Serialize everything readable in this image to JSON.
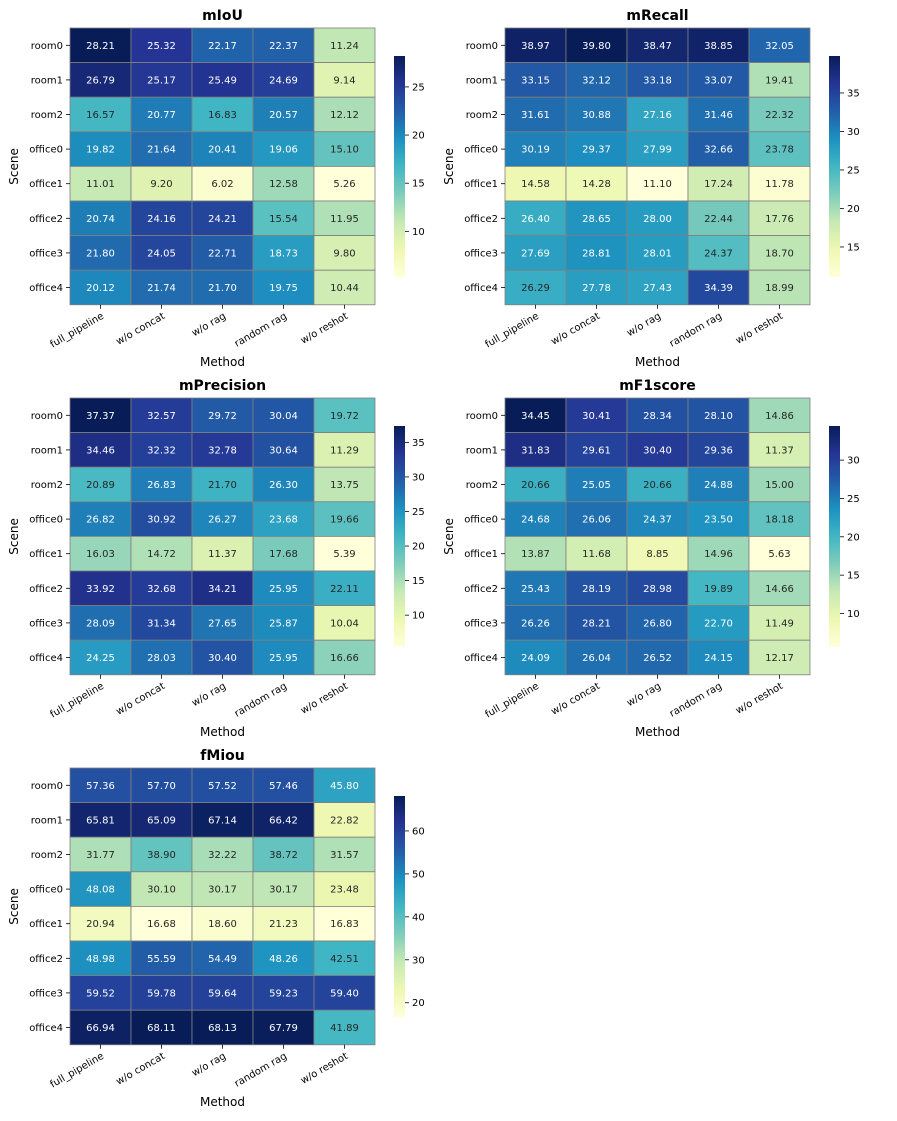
{
  "chart_data": [
    {
      "type": "heatmap",
      "title": "mIoU",
      "xlabel": "Method",
      "ylabel": "Scene",
      "x_categories": [
        "full_pipeline",
        "w/o concat",
        "w/o rag",
        "random rag",
        "w/o reshot"
      ],
      "y_categories": [
        "room0",
        "room1",
        "room2",
        "office0",
        "office1",
        "office2",
        "office3",
        "office4"
      ],
      "values": [
        [
          "28.21",
          "25.32",
          "22.17",
          "22.37",
          "11.24"
        ],
        [
          "26.79",
          "25.17",
          "25.49",
          "24.69",
          "9.14"
        ],
        [
          "16.57",
          "20.77",
          "16.83",
          "20.57",
          "12.12"
        ],
        [
          "19.82",
          "21.64",
          "20.41",
          "19.06",
          "15.10"
        ],
        [
          "11.01",
          "9.20",
          "6.02",
          "12.58",
          "5.26"
        ],
        [
          "20.74",
          "24.16",
          "24.21",
          "15.54",
          "11.95"
        ],
        [
          "21.80",
          "24.05",
          "22.71",
          "18.73",
          "9.80"
        ],
        [
          "20.12",
          "21.74",
          "21.70",
          "19.75",
          "10.44"
        ]
      ],
      "colorbar": {
        "min": 5.26,
        "max": 28.21,
        "ticks": [
          "10",
          "15",
          "20",
          "25"
        ]
      },
      "colormap": "YlGnBu"
    },
    {
      "type": "heatmap",
      "title": "mRecall",
      "xlabel": "Method",
      "ylabel": "Scene",
      "x_categories": [
        "full_pipeline",
        "w/o concat",
        "w/o rag",
        "random rag",
        "w/o reshot"
      ],
      "y_categories": [
        "room0",
        "room1",
        "room2",
        "office0",
        "office1",
        "office2",
        "office3",
        "office4"
      ],
      "values": [
        [
          "38.97",
          "39.80",
          "38.47",
          "38.85",
          "32.05"
        ],
        [
          "33.15",
          "32.12",
          "33.18",
          "33.07",
          "19.41"
        ],
        [
          "31.61",
          "30.88",
          "27.16",
          "31.46",
          "22.32"
        ],
        [
          "30.19",
          "29.37",
          "27.99",
          "32.66",
          "23.78"
        ],
        [
          "14.58",
          "14.28",
          "11.10",
          "17.24",
          "11.78"
        ],
        [
          "26.40",
          "28.65",
          "28.00",
          "22.44",
          "17.76"
        ],
        [
          "27.69",
          "28.81",
          "28.01",
          "24.37",
          "18.70"
        ],
        [
          "26.29",
          "27.78",
          "27.43",
          "34.39",
          "18.99"
        ]
      ],
      "colorbar": {
        "min": 11.1,
        "max": 39.8,
        "ticks": [
          "15",
          "20",
          "25",
          "30",
          "35"
        ]
      },
      "colormap": "YlGnBu"
    },
    {
      "type": "heatmap",
      "title": "mPrecision",
      "xlabel": "Method",
      "ylabel": "Scene",
      "x_categories": [
        "full_pipeline",
        "w/o concat",
        "w/o rag",
        "random rag",
        "w/o reshot"
      ],
      "y_categories": [
        "room0",
        "room1",
        "room2",
        "office0",
        "office1",
        "office2",
        "office3",
        "office4"
      ],
      "values": [
        [
          "37.37",
          "32.57",
          "29.72",
          "30.04",
          "19.72"
        ],
        [
          "34.46",
          "32.32",
          "32.78",
          "30.64",
          "11.29"
        ],
        [
          "20.89",
          "26.83",
          "21.70",
          "26.30",
          "13.75"
        ],
        [
          "26.82",
          "30.92",
          "26.27",
          "23.68",
          "19.66"
        ],
        [
          "16.03",
          "14.72",
          "11.37",
          "17.68",
          "5.39"
        ],
        [
          "33.92",
          "32.68",
          "34.21",
          "25.95",
          "22.11"
        ],
        [
          "28.09",
          "31.34",
          "27.65",
          "25.87",
          "10.04"
        ],
        [
          "24.25",
          "28.03",
          "30.40",
          "25.95",
          "16.66"
        ]
      ],
      "colorbar": {
        "min": 5.39,
        "max": 37.37,
        "ticks": [
          "10",
          "15",
          "20",
          "25",
          "30",
          "35"
        ]
      },
      "colormap": "YlGnBu"
    },
    {
      "type": "heatmap",
      "title": "mF1score",
      "xlabel": "Method",
      "ylabel": "Scene",
      "x_categories": [
        "full_pipeline",
        "w/o concat",
        "w/o rag",
        "random rag",
        "w/o reshot"
      ],
      "y_categories": [
        "room0",
        "room1",
        "room2",
        "office0",
        "office1",
        "office2",
        "office3",
        "office4"
      ],
      "values": [
        [
          "34.45",
          "30.41",
          "28.34",
          "28.10",
          "14.86"
        ],
        [
          "31.83",
          "29.61",
          "30.40",
          "29.36",
          "11.37"
        ],
        [
          "20.66",
          "25.05",
          "20.66",
          "24.88",
          "15.00"
        ],
        [
          "24.68",
          "26.06",
          "24.37",
          "23.50",
          "18.18"
        ],
        [
          "13.87",
          "11.68",
          "8.85",
          "14.96",
          "5.63"
        ],
        [
          "25.43",
          "28.19",
          "28.98",
          "19.89",
          "14.66"
        ],
        [
          "26.26",
          "28.21",
          "26.80",
          "22.70",
          "11.49"
        ],
        [
          "24.09",
          "26.04",
          "26.52",
          "24.15",
          "12.17"
        ]
      ],
      "colorbar": {
        "min": 5.63,
        "max": 34.45,
        "ticks": [
          "10",
          "15",
          "20",
          "25",
          "30"
        ]
      },
      "colormap": "YlGnBu"
    },
    {
      "type": "heatmap",
      "title": "fMiou",
      "xlabel": "Method",
      "ylabel": "Scene",
      "x_categories": [
        "full_pipeline",
        "w/o concat",
        "w/o rag",
        "random rag",
        "w/o reshot"
      ],
      "y_categories": [
        "room0",
        "room1",
        "room2",
        "office0",
        "office1",
        "office2",
        "office3",
        "office4"
      ],
      "values": [
        [
          "57.36",
          "57.70",
          "57.52",
          "57.46",
          "45.80"
        ],
        [
          "65.81",
          "65.09",
          "67.14",
          "66.42",
          "22.82"
        ],
        [
          "31.77",
          "38.90",
          "32.22",
          "38.72",
          "31.57"
        ],
        [
          "48.08",
          "30.10",
          "30.17",
          "30.17",
          "23.48"
        ],
        [
          "20.94",
          "16.68",
          "18.60",
          "21.23",
          "16.83"
        ],
        [
          "48.98",
          "55.59",
          "54.49",
          "48.26",
          "42.51"
        ],
        [
          "59.52",
          "59.78",
          "59.64",
          "59.23",
          "59.40"
        ],
        [
          "66.94",
          "68.11",
          "68.13",
          "67.79",
          "41.89"
        ]
      ],
      "colorbar": {
        "min": 16.68,
        "max": 68.13,
        "ticks": [
          "20",
          "30",
          "40",
          "50",
          "60"
        ]
      },
      "colormap": "YlGnBu"
    }
  ]
}
